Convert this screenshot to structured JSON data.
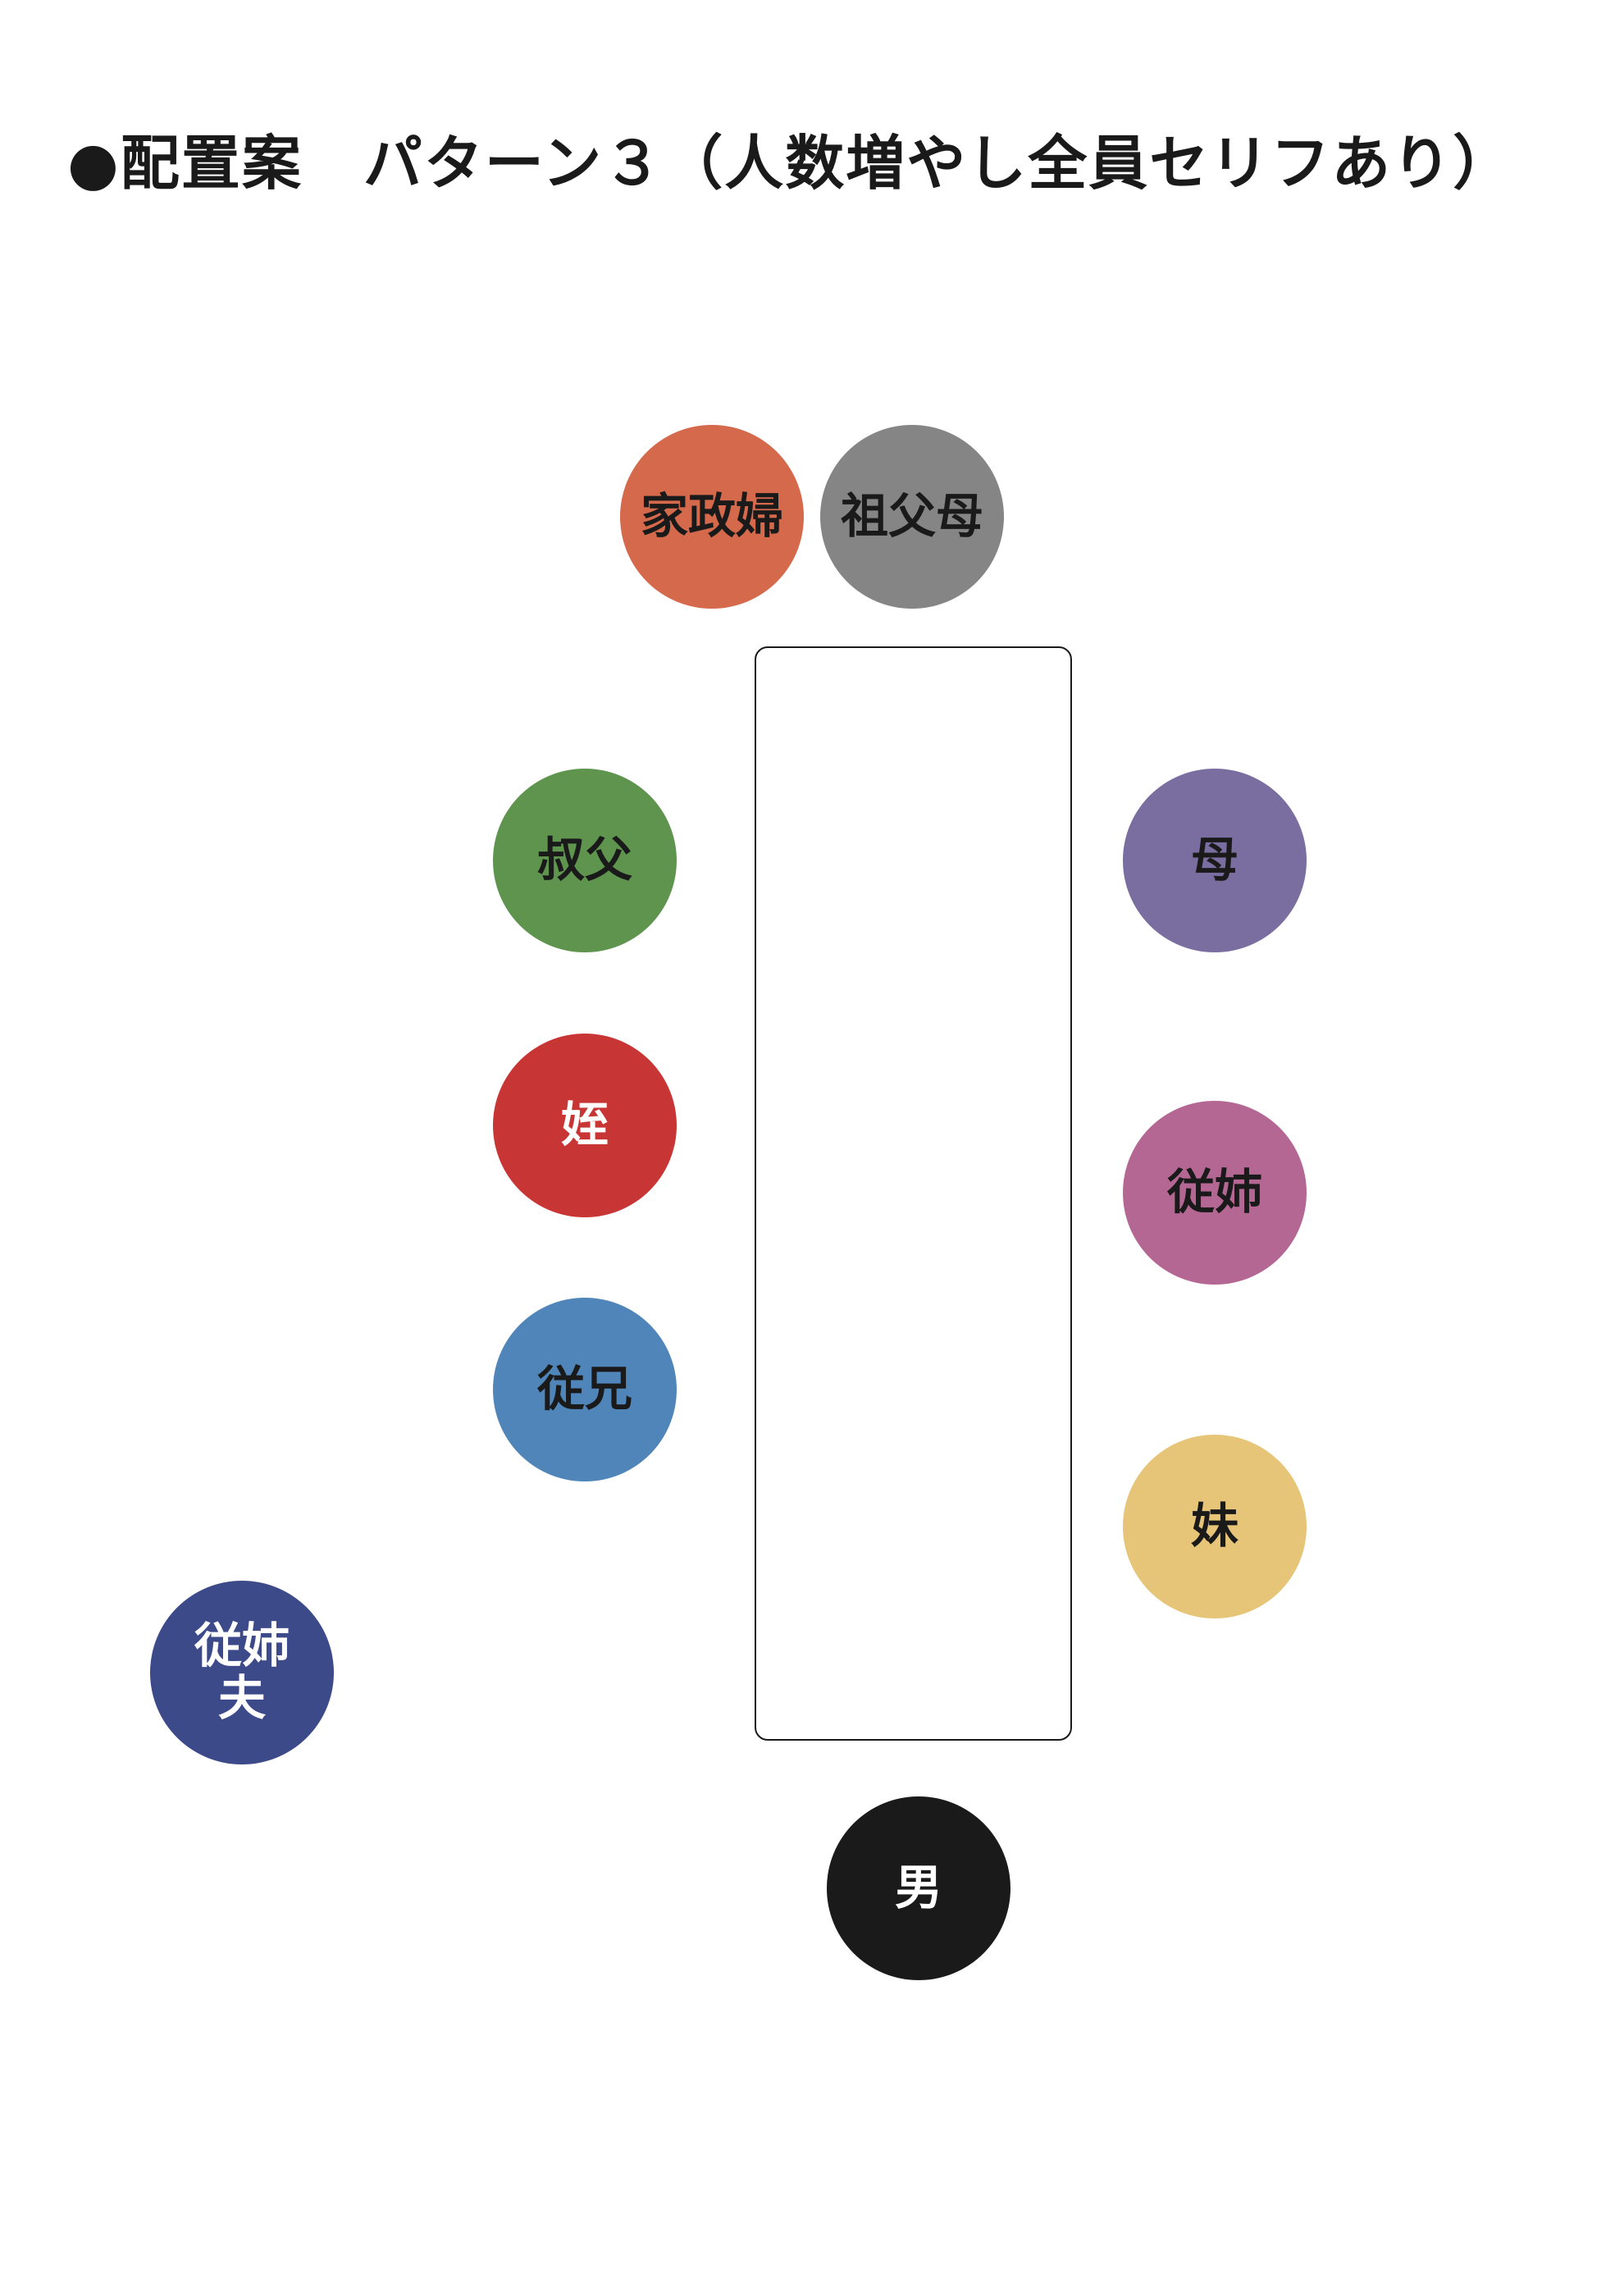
{
  "title": "●配置案　パターン３（人数増やし全員セリフあり）",
  "seats": [
    {
      "label": "家政婦",
      "color": "#d4694c",
      "text_color": "#1a1a1a"
    },
    {
      "label": "祖父母",
      "color": "#858585",
      "text_color": "#1a1a1a"
    },
    {
      "label": "叔父",
      "color": "#5e944e",
      "text_color": "#1a1a1a"
    },
    {
      "label": "母",
      "color": "#7a6da0",
      "text_color": "#1a1a1a"
    },
    {
      "label": "姪",
      "color": "#c73634",
      "text_color": "#ffffff"
    },
    {
      "label": "従姉",
      "color": "#b56794",
      "text_color": "#1a1a1a"
    },
    {
      "label": "従兄",
      "color": "#4f85b8",
      "text_color": "#1a1a1a"
    },
    {
      "label": "妹",
      "color": "#e6c478",
      "text_color": "#1a1a1a"
    },
    {
      "label": "従姉夫",
      "color": "#3d4a8a",
      "text_color": "#ffffff"
    },
    {
      "label": "男",
      "color": "#1a1a1a",
      "text_color": "#ffffff"
    }
  ]
}
